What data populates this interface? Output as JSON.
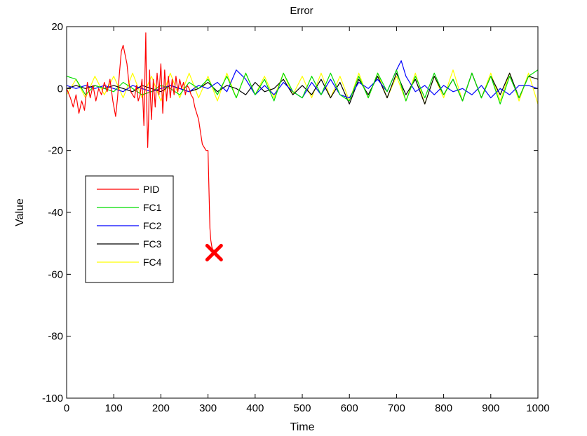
{
  "chart_data": {
    "type": "line",
    "title": "Error",
    "xlabel": "Time",
    "ylabel": "Value",
    "xlim": [
      0,
      1000
    ],
    "ylim": [
      -100,
      20
    ],
    "xticks": [
      0,
      100,
      200,
      300,
      400,
      500,
      600,
      700,
      800,
      900,
      1000
    ],
    "yticks": [
      20,
      0,
      -20,
      -40,
      -60,
      -80,
      -100
    ],
    "xtick_labels": [
      "0",
      "100",
      "200",
      "300",
      "400",
      "500",
      "600",
      "700",
      "800",
      "900",
      "1000"
    ],
    "ytick_labels": [
      "20",
      "0",
      "-20",
      "-40",
      "-60",
      "-80",
      "-100"
    ],
    "grid": false,
    "legend_position": "left-middle",
    "series": [
      {
        "name": "PID",
        "color": "#ff0000",
        "x": [
          0,
          8,
          14,
          20,
          26,
          32,
          38,
          44,
          50,
          56,
          62,
          68,
          74,
          80,
          86,
          92,
          98,
          104,
          108,
          112,
          116,
          120,
          124,
          128,
          132,
          136,
          140,
          144,
          148,
          152,
          156,
          160,
          164,
          168,
          170,
          172,
          174,
          176,
          178,
          180,
          184,
          188,
          192,
          196,
          200,
          204,
          208,
          212,
          216,
          220,
          224,
          228,
          232,
          236,
          240,
          244,
          248,
          252,
          256,
          260,
          264,
          268,
          272,
          276,
          280,
          284,
          288,
          292,
          296,
          300,
          302,
          304,
          306,
          308,
          310,
          312,
          314
        ],
        "y": [
          0,
          -3,
          -6,
          -2,
          -8,
          -4,
          -7,
          2,
          -3,
          1,
          -4,
          0,
          -2,
          2,
          -1,
          3,
          -4,
          -9,
          -3,
          5,
          12,
          14,
          11,
          8,
          2,
          -1,
          -2,
          -3,
          1,
          -4,
          -2,
          3,
          -12,
          18,
          -5,
          -19,
          -10,
          6,
          -3,
          -10,
          3,
          -6,
          5,
          -2,
          8,
          -8,
          6,
          -4,
          4,
          -3,
          3,
          -2,
          4,
          -1,
          3,
          0,
          2,
          -2,
          1,
          0,
          -2,
          -3,
          -6,
          -8,
          -10,
          -14,
          -18,
          -19,
          -20,
          -20,
          -32,
          -45,
          -49,
          -51,
          -52,
          -53,
          -52
        ]
      },
      {
        "name": "FC1",
        "color": "#00dd00",
        "x": [
          0,
          20,
          40,
          60,
          80,
          100,
          120,
          140,
          160,
          180,
          200,
          220,
          240,
          260,
          280,
          300,
          320,
          340,
          360,
          380,
          400,
          420,
          440,
          460,
          480,
          500,
          520,
          540,
          560,
          580,
          600,
          620,
          640,
          660,
          680,
          700,
          720,
          740,
          760,
          780,
          800,
          820,
          840,
          860,
          880,
          900,
          920,
          940,
          960,
          980,
          1000
        ],
        "y": [
          4,
          3,
          -2,
          1,
          0,
          -1,
          2,
          0,
          -2,
          -1,
          1,
          0,
          -2,
          2,
          0,
          3,
          -2,
          4,
          -3,
          5,
          -2,
          3,
          -4,
          5,
          -1,
          -3,
          4,
          -2,
          5,
          -2,
          -4,
          4,
          -3,
          5,
          -1,
          6,
          -4,
          4,
          -3,
          5,
          -2,
          3,
          -4,
          5,
          -3,
          4,
          -5,
          4,
          -3,
          4,
          6
        ]
      },
      {
        "name": "FC2",
        "color": "#0000ff",
        "x": [
          0,
          20,
          40,
          60,
          80,
          100,
          120,
          140,
          160,
          180,
          200,
          220,
          240,
          260,
          280,
          300,
          320,
          340,
          360,
          380,
          400,
          420,
          440,
          460,
          480,
          500,
          520,
          540,
          560,
          580,
          600,
          620,
          640,
          660,
          680,
          700,
          710,
          720,
          740,
          760,
          780,
          800,
          820,
          840,
          860,
          880,
          900,
          920,
          940,
          960,
          980,
          1000
        ],
        "y": [
          1,
          0,
          1,
          0,
          1,
          0,
          -1,
          1,
          0,
          -1,
          0,
          1,
          0,
          -1,
          1,
          0,
          2,
          -1,
          6,
          3,
          -2,
          1,
          -2,
          2,
          -1,
          -3,
          2,
          -2,
          3,
          -2,
          -3,
          2,
          0,
          3,
          -1,
          6,
          9,
          4,
          -1,
          1,
          -2,
          1,
          -1,
          0,
          -2,
          1,
          -3,
          0,
          -2,
          1,
          1,
          0
        ]
      },
      {
        "name": "FC3",
        "color": "#000000",
        "x": [
          0,
          20,
          40,
          60,
          80,
          100,
          120,
          140,
          160,
          180,
          200,
          220,
          240,
          260,
          280,
          300,
          320,
          340,
          360,
          380,
          400,
          420,
          440,
          460,
          480,
          500,
          520,
          540,
          560,
          580,
          600,
          620,
          640,
          660,
          680,
          700,
          720,
          740,
          760,
          780,
          800,
          820,
          840,
          860,
          880,
          900,
          920,
          940,
          960,
          980,
          1000
        ],
        "y": [
          0,
          1,
          0,
          1,
          0,
          1,
          0,
          -1,
          1,
          0,
          -1,
          1,
          0,
          -1,
          0,
          2,
          -1,
          1,
          0,
          -2,
          2,
          -1,
          0,
          3,
          -2,
          1,
          -2,
          3,
          -3,
          2,
          -5,
          3,
          -2,
          4,
          -3,
          5,
          -2,
          3,
          -5,
          4,
          -2,
          3,
          -4,
          5,
          -3,
          4,
          -2,
          5,
          -3,
          4,
          3
        ]
      },
      {
        "name": "FC4",
        "color": "#ffff00",
        "x": [
          0,
          20,
          40,
          60,
          80,
          100,
          120,
          140,
          160,
          180,
          200,
          220,
          240,
          260,
          280,
          300,
          320,
          340,
          360,
          380,
          400,
          420,
          440,
          460,
          480,
          500,
          520,
          540,
          560,
          580,
          600,
          620,
          640,
          660,
          680,
          700,
          720,
          740,
          760,
          780,
          800,
          820,
          840,
          860,
          880,
          900,
          920,
          940,
          960,
          980,
          1000
        ],
        "y": [
          -2,
          3,
          -3,
          4,
          -2,
          4,
          -3,
          5,
          -3,
          4,
          -4,
          5,
          -3,
          5,
          -3,
          4,
          -4,
          5,
          -3,
          5,
          -2,
          4,
          -3,
          5,
          -2,
          4,
          -3,
          5,
          -3,
          4,
          -4,
          5,
          -3,
          5,
          -3,
          4,
          -4,
          5,
          -5,
          4,
          -3,
          6,
          -4,
          5,
          -3,
          5,
          -4,
          5,
          -4,
          5,
          -5
        ]
      }
    ],
    "annotations": [
      {
        "type": "x-marker",
        "x": 313,
        "y": -53,
        "color": "#ff0000"
      }
    ]
  }
}
